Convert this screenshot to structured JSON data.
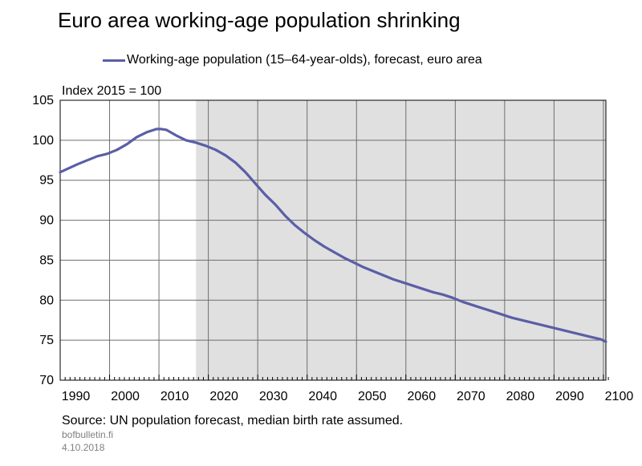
{
  "chart_data": {
    "type": "line",
    "title": "Euro area working-age population shrinking",
    "unit_label": "Index 2015 = 100",
    "ylim": [
      70,
      105
    ],
    "y_ticks": [
      70,
      75,
      80,
      85,
      90,
      95,
      100,
      105
    ],
    "xlim": [
      1986.5,
      2097
    ],
    "x_ticks": [
      1990,
      2000,
      2010,
      2020,
      2030,
      2040,
      2050,
      2060,
      2070,
      2080,
      2090,
      2100
    ],
    "grid": true,
    "legend_position": "top",
    "forecast_shading": {
      "from": 2014,
      "to": 2097,
      "color": "#e0e0e0"
    },
    "series": [
      {
        "name": "Working-age population (15–64-year-olds), forecast, euro area",
        "color": "#5b5ea6",
        "x": [
          1986.5,
          1990,
          1992,
          1994,
          1996,
          1998,
          2000,
          2002,
          2004,
          2006,
          2007,
          2008,
          2010,
          2012,
          2014,
          2016,
          2018,
          2020,
          2022,
          2024,
          2026,
          2028,
          2030,
          2032,
          2034,
          2036,
          2038,
          2040,
          2042,
          2044,
          2046,
          2048,
          2050,
          2052,
          2054,
          2056,
          2058,
          2060,
          2062,
          2064,
          2066,
          2068,
          2070,
          2072,
          2074,
          2076,
          2078,
          2080,
          2082,
          2084,
          2086,
          2088,
          2090,
          2092,
          2094,
          2096,
          2097
        ],
        "values": [
          96.0,
          97.0,
          97.5,
          98.0,
          98.3,
          98.8,
          99.5,
          100.4,
          101.0,
          101.4,
          101.4,
          101.3,
          100.6,
          100.0,
          99.7,
          99.3,
          98.8,
          98.1,
          97.2,
          96.0,
          94.6,
          93.2,
          92.0,
          90.6,
          89.4,
          88.4,
          87.5,
          86.7,
          86.0,
          85.3,
          84.7,
          84.1,
          83.6,
          83.1,
          82.6,
          82.2,
          81.8,
          81.4,
          81.0,
          80.7,
          80.3,
          79.8,
          79.4,
          79.0,
          78.6,
          78.2,
          77.8,
          77.5,
          77.2,
          76.9,
          76.6,
          76.3,
          76.0,
          75.7,
          75.4,
          75.1,
          74.8
        ]
      }
    ]
  },
  "source": "Source: UN population forecast, median birth rate assumed.",
  "site": "bofbulletin.fi",
  "date": "4.10.2018"
}
